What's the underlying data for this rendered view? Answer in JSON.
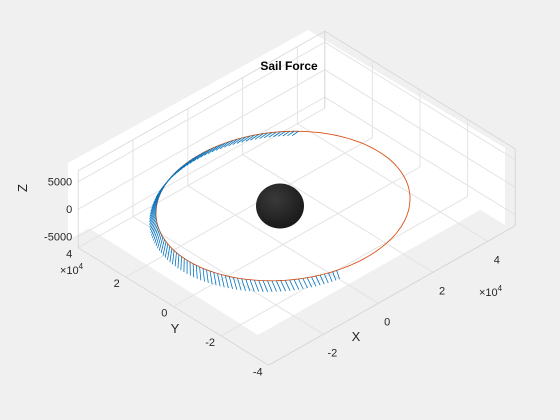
{
  "chart_data": {
    "type": "line",
    "title": "Sail Force",
    "xlabel": "X",
    "ylabel": "Y",
    "zlabel": "Z",
    "x_ticks": [
      "-2",
      "0",
      "2",
      "4"
    ],
    "y_ticks": [
      "-4",
      "-2",
      "0",
      "2",
      "4"
    ],
    "z_ticks": [
      "-5000",
      "0",
      "5000"
    ],
    "x_exponent": {
      "base": "×10",
      "power": "4"
    },
    "y_exponent": {
      "base": "×10",
      "power": "4"
    },
    "xlim": [
      -4,
      5
    ],
    "ylim": [
      -4,
      4
    ],
    "zlim": [
      -7000,
      7000
    ],
    "grid": true,
    "series": [
      {
        "kind": "orbit",
        "color": "#d95319",
        "radius": 3.5,
        "z": 0
      },
      {
        "kind": "sail-force-arrows",
        "color": "#0072bd",
        "arc_start_deg": 42,
        "arc_end_deg": 255,
        "max_length": 0.5
      },
      {
        "kind": "central-body",
        "color": "#1a1a1a",
        "radius": 0.75
      }
    ]
  }
}
